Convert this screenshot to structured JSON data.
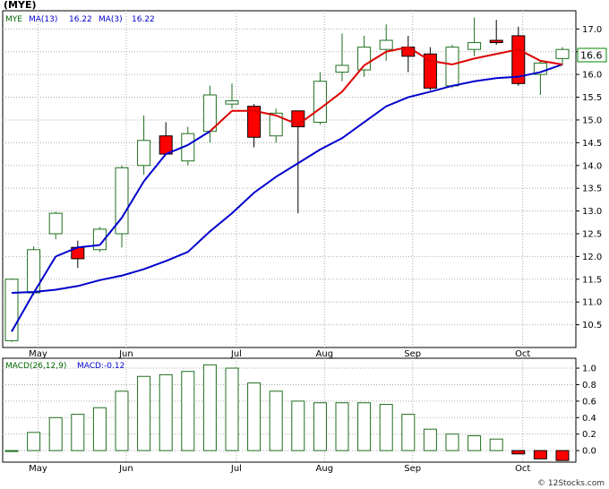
{
  "title": "(MYE)",
  "watermark": "© 12Stocks.com",
  "colors": {
    "frame": "#000000",
    "grid": "#aaaaaa",
    "up_candle": "#1e6e1e",
    "down_candle": "#ff0000",
    "ma_long": "#0000cc",
    "ma_short": "#dd0000",
    "legend_label": "#006600",
    "legend_values": "#0000cc",
    "last_price_box": "#008800",
    "macd_bar": "#1e6e1e",
    "macd_neg": "#ff0000"
  },
  "legend": {
    "symbol": "MYE",
    "ma_long_label": "MA(13)",
    "ma_long_value": "16.22",
    "ma_short_label": "MA(3)",
    "ma_short_value": "16.22"
  },
  "last_price_label": "16.6",
  "macd_legend": {
    "label": "MACD(26,12,9)",
    "value_label": "MACD:-0.12"
  },
  "chart_data": [
    {
      "type": "candlestick",
      "title": "(MYE)",
      "x_labels": [
        "May",
        "Jun",
        "Jul",
        "Aug",
        "Sep",
        "Oct"
      ],
      "x_label_positions": [
        1.2,
        5.2,
        10.2,
        14.2,
        18.2,
        23.2
      ],
      "ylim": [
        10.0,
        17.4
      ],
      "y_ticks": [
        10.5,
        11.0,
        11.5,
        12.0,
        12.5,
        13.0,
        13.5,
        14.0,
        14.5,
        15.0,
        15.5,
        16.0,
        16.5,
        17.0
      ],
      "candles": [
        {
          "open": 10.15,
          "high": 11.52,
          "low": 10.12,
          "close": 11.5
        },
        {
          "open": 11.2,
          "high": 12.22,
          "low": 11.15,
          "close": 12.15
        },
        {
          "open": 12.5,
          "high": 12.98,
          "low": 12.38,
          "close": 12.95
        },
        {
          "open": 12.2,
          "high": 12.35,
          "low": 11.75,
          "close": 11.95
        },
        {
          "open": 12.15,
          "high": 12.65,
          "low": 12.1,
          "close": 12.6
        },
        {
          "open": 12.5,
          "high": 14.0,
          "low": 12.2,
          "close": 13.95
        },
        {
          "open": 14.0,
          "high": 15.1,
          "low": 13.8,
          "close": 14.55
        },
        {
          "open": 14.65,
          "high": 14.95,
          "low": 14.25,
          "close": 14.25
        },
        {
          "open": 14.1,
          "high": 14.85,
          "low": 14.0,
          "close": 14.7
        },
        {
          "open": 14.75,
          "high": 15.75,
          "low": 14.5,
          "close": 15.55
        },
        {
          "open": 15.35,
          "high": 15.8,
          "low": 15.25,
          "close": 15.42
        },
        {
          "open": 15.3,
          "high": 15.35,
          "low": 14.4,
          "close": 14.62
        },
        {
          "open": 14.65,
          "high": 15.25,
          "low": 14.5,
          "close": 15.15
        },
        {
          "open": 15.2,
          "high": 15.2,
          "low": 12.95,
          "close": 14.85
        },
        {
          "open": 14.95,
          "high": 16.05,
          "low": 14.9,
          "close": 15.85
        },
        {
          "open": 16.05,
          "high": 16.9,
          "low": 15.85,
          "close": 16.2
        },
        {
          "open": 16.1,
          "high": 16.85,
          "low": 15.95,
          "close": 16.6
        },
        {
          "open": 16.55,
          "high": 17.1,
          "low": 16.3,
          "close": 16.75
        },
        {
          "open": 16.6,
          "high": 16.85,
          "low": 16.05,
          "close": 16.4
        },
        {
          "open": 16.45,
          "high": 16.6,
          "low": 15.65,
          "close": 15.7
        },
        {
          "open": 15.75,
          "high": 16.65,
          "low": 15.7,
          "close": 16.6
        },
        {
          "open": 16.55,
          "high": 17.25,
          "low": 16.4,
          "close": 16.7
        },
        {
          "open": 16.75,
          "high": 17.2,
          "low": 16.65,
          "close": 16.7
        },
        {
          "open": 16.85,
          "high": 17.05,
          "low": 15.75,
          "close": 15.8
        },
        {
          "open": 16.0,
          "high": 16.3,
          "low": 15.55,
          "close": 16.25
        },
        {
          "open": 16.35,
          "high": 16.6,
          "low": 16.2,
          "close": 16.55
        }
      ],
      "series": [
        {
          "name": "MA(13)",
          "values": [
            11.2,
            11.22,
            11.27,
            11.35,
            11.48,
            11.58,
            11.72,
            11.9,
            12.1,
            12.55,
            12.95,
            13.4,
            13.75,
            14.05,
            14.35,
            14.6,
            14.95,
            15.3,
            15.5,
            15.62,
            15.75,
            15.85,
            15.92,
            15.95,
            16.05,
            16.22
          ]
        },
        {
          "name": "MA(3)",
          "values": [
            10.35,
            11.2,
            12.0,
            12.2,
            12.25,
            12.85,
            13.65,
            14.25,
            14.45,
            14.75,
            15.2,
            15.2,
            15.1,
            14.9,
            15.25,
            15.62,
            16.2,
            16.5,
            16.6,
            16.3,
            16.22,
            16.35,
            16.45,
            16.55,
            16.3,
            16.22
          ]
        }
      ]
    },
    {
      "type": "bar",
      "title": "MACD(26,12,9)",
      "x_labels": [
        "May",
        "Jun",
        "Jul",
        "Aug",
        "Sep",
        "Oct"
      ],
      "ylim": [
        -0.14,
        1.12
      ],
      "y_ticks": [
        0.0,
        0.2,
        0.4,
        0.6,
        0.8,
        1.0
      ],
      "values": [
        0.0,
        0.22,
        0.4,
        0.44,
        0.52,
        0.72,
        0.9,
        0.92,
        0.96,
        1.04,
        1.0,
        0.82,
        0.72,
        0.6,
        0.58,
        0.58,
        0.58,
        0.56,
        0.44,
        0.26,
        0.2,
        0.18,
        0.14,
        -0.04,
        -0.1,
        -0.12
      ]
    }
  ]
}
